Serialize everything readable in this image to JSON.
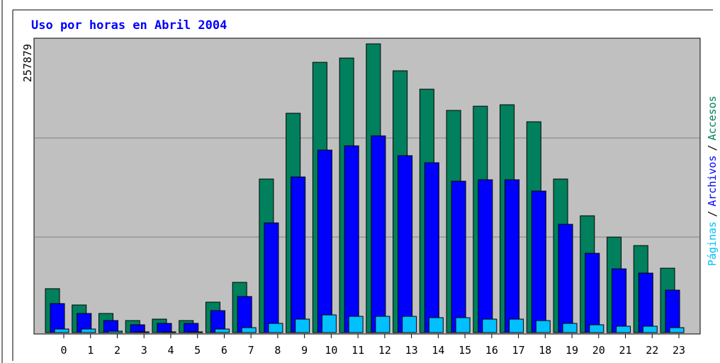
{
  "chart_data": {
    "type": "bar",
    "title": "Uso por horas en Abril 2004",
    "categories": [
      "0",
      "1",
      "2",
      "3",
      "4",
      "5",
      "6",
      "7",
      "8",
      "9",
      "10",
      "11",
      "12",
      "13",
      "14",
      "15",
      "16",
      "17",
      "18",
      "19",
      "20",
      "21",
      "22",
      "23"
    ],
    "ylim": [
      0,
      257879
    ],
    "yticks": [
      257879
    ],
    "legend_separator": "/",
    "series": [
      {
        "name": "Accesos",
        "color": "#00805c",
        "values": [
          39200,
          24650,
          17060,
          10740,
          12000,
          10740,
          27180,
          44870,
          137150,
          195900,
          241400,
          245200,
          257879,
          233850,
          217400,
          198450,
          202200,
          203500,
          188300,
          137150,
          104300,
          85300,
          77700,
          57500
        ]
      },
      {
        "name": "Archivos",
        "color": "#0000ff",
        "values": [
          25900,
          17060,
          10740,
          6950,
          8200,
          8200,
          19600,
          32200,
          97960,
          139000,
          163000,
          166800,
          175700,
          158000,
          151700,
          135200,
          136500,
          136500,
          126400,
          96700,
          70800,
          56900,
          53100,
          37900
        ]
      },
      {
        "name": "Páginas",
        "color": "#00c0ff",
        "values": [
          3160,
          3160,
          1260,
          630,
          630,
          630,
          3160,
          4400,
          8200,
          12000,
          15800,
          14500,
          14500,
          14500,
          13300,
          13300,
          12000,
          12000,
          10700,
          8200,
          6950,
          5700,
          5700,
          4400
        ]
      }
    ]
  }
}
